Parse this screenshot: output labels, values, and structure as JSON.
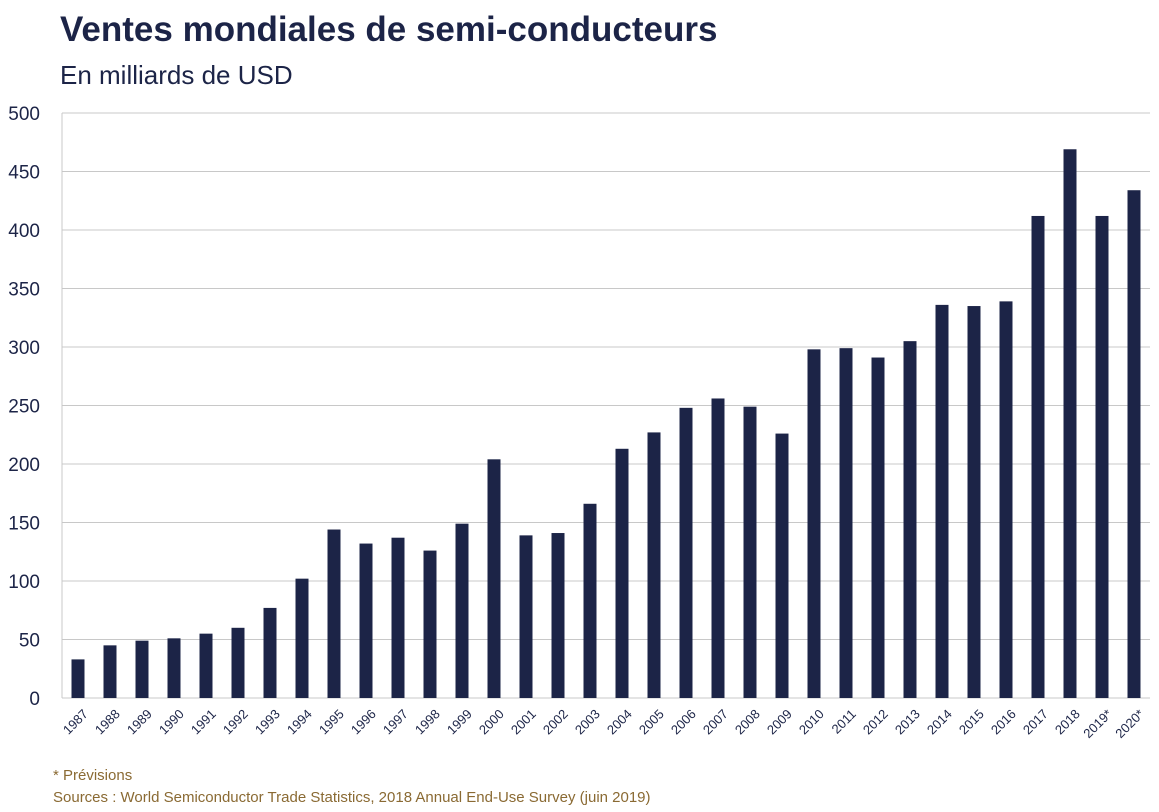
{
  "title": "Ventes mondiales de semi-conducteurs",
  "subtitle": "En milliards de USD",
  "footnote": "* Prévisions",
  "source": "Sources : World Semiconductor Trade Statistics, 2018 Annual End-Use Survey (juin 2019)",
  "colors": {
    "bar": "#1c2447",
    "grid": "#c8c8c8",
    "axis_text": "#1c2447",
    "footnote": "#8a6a33"
  },
  "chart_data": {
    "type": "bar",
    "title": "Ventes mondiales de semi-conducteurs",
    "subtitle": "En milliards de USD",
    "xlabel": "",
    "ylabel": "",
    "ylim": [
      0,
      500
    ],
    "yticks": [
      0,
      50,
      100,
      150,
      200,
      250,
      300,
      350,
      400,
      450,
      500
    ],
    "grid": true,
    "categories": [
      "1987",
      "1988",
      "1989",
      "1990",
      "1991",
      "1992",
      "1993",
      "1994",
      "1995",
      "1996",
      "1997",
      "1998",
      "1999",
      "2000",
      "2001",
      "2002",
      "2003",
      "2004",
      "2005",
      "2006",
      "2007",
      "2008",
      "2009",
      "2010",
      "2011",
      "2012",
      "2013",
      "2014",
      "2015",
      "2016",
      "2017",
      "2018",
      "2019*",
      "2020*"
    ],
    "values": [
      33,
      45,
      49,
      51,
      55,
      60,
      77,
      102,
      144,
      132,
      137,
      126,
      149,
      204,
      139,
      141,
      166,
      213,
      227,
      248,
      256,
      249,
      226,
      298,
      299,
      291,
      305,
      336,
      335,
      339,
      412,
      469,
      412,
      434
    ]
  }
}
